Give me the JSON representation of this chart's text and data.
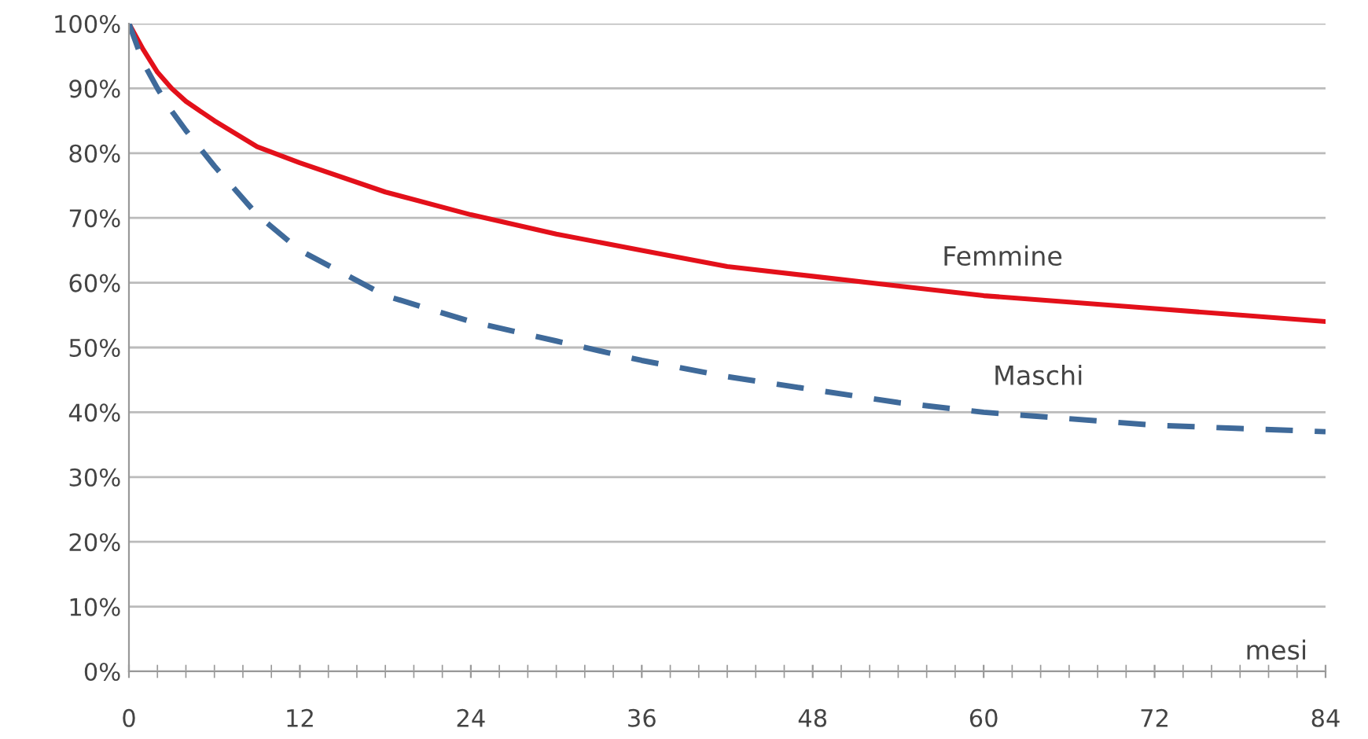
{
  "chart_data": {
    "type": "line",
    "xlabel": "mesi",
    "series": [
      {
        "name": "Femmine",
        "color": "#e3101a",
        "line_style": "solid",
        "x": [
          0,
          1,
          2,
          3,
          4,
          6,
          9,
          12,
          18,
          24,
          30,
          36,
          42,
          48,
          54,
          60,
          66,
          72,
          78,
          84
        ],
        "values": [
          100,
          96,
          92.5,
          90,
          88,
          85,
          81,
          78.5,
          74,
          70.5,
          67.5,
          65,
          62.5,
          61,
          59.5,
          58,
          57,
          56,
          55,
          54
        ]
      },
      {
        "name": "Maschi",
        "color": "#3f6a9a",
        "line_style": "dashed",
        "x": [
          0,
          1,
          2,
          3,
          4,
          6,
          9,
          12,
          18,
          24,
          30,
          36,
          42,
          48,
          54,
          60,
          66,
          72,
          78,
          84
        ],
        "values": [
          100,
          94,
          90,
          86.5,
          83.5,
          78,
          70.5,
          65,
          58,
          54,
          51,
          48,
          45.5,
          43.5,
          41.5,
          40,
          39,
          38,
          37.5,
          37
        ]
      }
    ],
    "xlim": [
      0,
      84
    ],
    "xticks": [
      0,
      12,
      24,
      36,
      48,
      60,
      72,
      84
    ],
    "ylim": [
      0,
      100
    ],
    "yticks": [
      {
        "value": 0,
        "label": "0%"
      },
      {
        "value": 10,
        "label": "10%"
      },
      {
        "value": 20,
        "label": "20%"
      },
      {
        "value": 30,
        "label": "30%"
      },
      {
        "value": 40,
        "label": "40%"
      },
      {
        "value": 50,
        "label": "50%"
      },
      {
        "value": 60,
        "label": "60%"
      },
      {
        "value": 70,
        "label": "70%"
      },
      {
        "value": 80,
        "label": "80%"
      },
      {
        "value": 90,
        "label": "90%"
      },
      {
        "value": 100,
        "label": "100%"
      }
    ],
    "grid": "y",
    "legend": false,
    "marker": "none"
  }
}
